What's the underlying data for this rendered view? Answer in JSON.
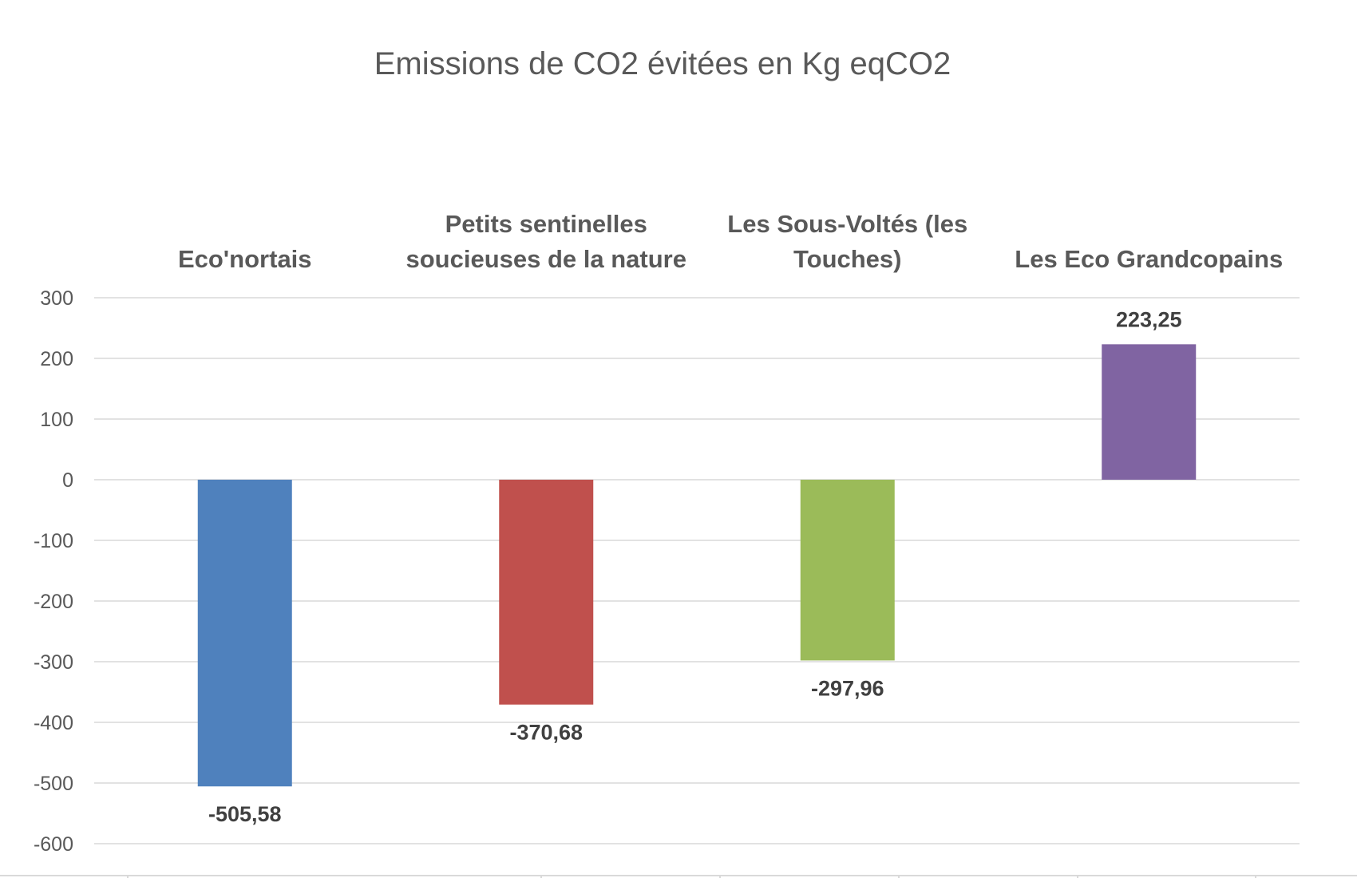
{
  "chart_data": {
    "type": "bar",
    "title": "Emissions de CO2 évitées en Kg eqCO2",
    "categories": [
      "Eco'nortais",
      "Petits sentinelles soucieuses de la nature",
      "Les Sous-Voltés (les Touches)",
      "Les Eco Grandcopains"
    ],
    "category_label_lines": [
      [
        "Eco'nortais"
      ],
      [
        "Petits sentinelles",
        "soucieuses de la nature"
      ],
      [
        "Les Sous-Voltés (les",
        "Touches)"
      ],
      [
        "Les Eco Grandcopains"
      ]
    ],
    "values": [
      -505.58,
      -370.68,
      -297.96,
      223.25
    ],
    "data_labels": [
      "-505,58",
      "-370,68",
      "-297,96",
      "223,25"
    ],
    "colors": [
      "#4f81bd",
      "#c0504d",
      "#9bbb59",
      "#8064a2"
    ],
    "ylim": [
      -600,
      300
    ],
    "yticks": [
      300,
      200,
      100,
      0,
      -100,
      -200,
      -300,
      -400,
      -500,
      -600
    ],
    "grid": true,
    "legend": "none",
    "category_labels_position": "top",
    "xlabel": "",
    "ylabel": ""
  }
}
